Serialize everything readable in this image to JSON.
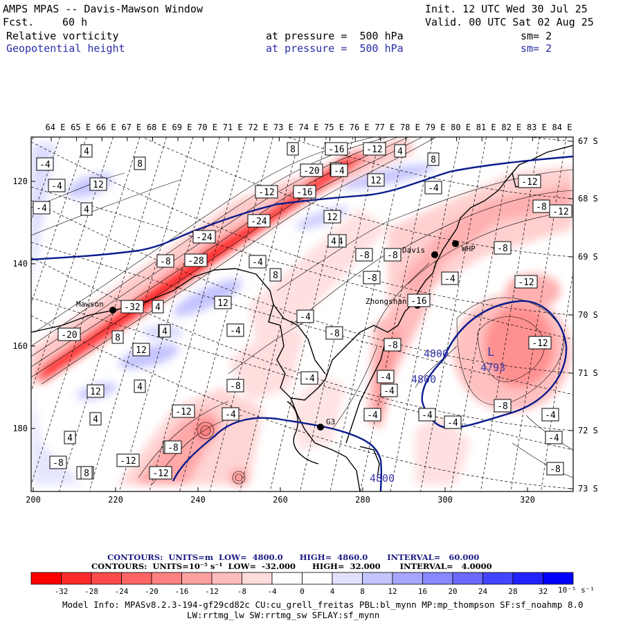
{
  "header": {
    "title": "AMPS MPAS -- Davis-Mawson Window",
    "fcst_label": "Fcst.",
    "fcst_value": "60 h",
    "init": "Init. 12 UTC Wed 30 Jul 25",
    "valid": "Valid. 00 UTC Sat 02 Aug 25",
    "field1": "Relative vorticity",
    "field1_level": "at pressure =  500 hPa",
    "field1_sm": "sm= 2",
    "field2": "Geopotential height",
    "field2_level": "at pressure =  500 hPa",
    "field2_sm": "sm= 2"
  },
  "colors": {
    "height_contour": "#0a1a8c",
    "coast": "#000000"
  },
  "axes": {
    "top_lon_labels": [
      "64 E",
      "65 E",
      "66 E",
      "67 E",
      "68 E",
      "69 E",
      "70 E",
      "71 E",
      "72 E",
      "73 E",
      "74 E",
      "75 E",
      "76 E",
      "77 E",
      "78 E",
      "79 E",
      "80 E",
      "81 E",
      "82 E",
      "83 E",
      "84 E"
    ],
    "right_lat_labels": [
      "67 S",
      "68 S",
      "69 S",
      "70 S",
      "71 S",
      "72 S",
      "73 S"
    ],
    "left_y_ticks": [
      "120",
      "140",
      "160",
      "180"
    ],
    "bottom_x_ticks": [
      "200",
      "220",
      "240",
      "260",
      "280",
      "300",
      "320"
    ]
  },
  "stations": [
    {
      "name": "Davis"
    },
    {
      "name": "WHP"
    },
    {
      "name": "Mawson"
    },
    {
      "name": "Zhongshan"
    },
    {
      "name": "G3"
    }
  ],
  "vort_labels": [
    "-4",
    "4",
    "8",
    "-4",
    "4",
    "12",
    "-4",
    "8",
    "4",
    "-4",
    "-16",
    "-12",
    "4",
    "8",
    "-20",
    "-4",
    "12",
    "-4",
    "-12",
    "-16",
    "-12",
    "-8",
    "12",
    "-24",
    "-12",
    "-24",
    "4",
    "-28",
    "-8",
    "8",
    "-4",
    "-8",
    "-8",
    "-8",
    "-4",
    "-8",
    "-32",
    "4",
    "12",
    "-12",
    "-16",
    "-4",
    "-4",
    "-20",
    "8",
    "12",
    "4",
    "-8",
    "-8",
    "12",
    "-12",
    "-4",
    "-8",
    "-8",
    "4",
    "-12",
    "-4",
    "-4",
    "-4",
    "-4",
    "-4",
    "-4",
    "-8",
    "-8",
    "-12",
    "-12",
    "4",
    "4",
    "-8",
    "-4",
    "-4",
    "8",
    "4",
    "-4",
    "-8"
  ],
  "height_labels": [
    "4800",
    "4800",
    "4793",
    "4800",
    "L"
  ],
  "contour_info": {
    "line1": "CONTOURS:  UNITS=m  LOW=  4800.0      HIGH=  4860.0       INTERVAL=   60.000",
    "line2": "CONTOURS:  UNITS=10⁻⁵ s⁻¹  LOW=  -32.000      HIGH=  32.000       INTERVAL=   4.0000"
  },
  "colorbar": {
    "ticks": [
      "-32",
      "-28",
      "-24",
      "-20",
      "-16",
      "-12",
      "-8",
      "-4",
      "0",
      "4",
      "8",
      "12",
      "16",
      "20",
      "24",
      "28",
      "32"
    ],
    "unit": "10⁻⁵ s⁻¹",
    "colors": [
      "#ff0000",
      "#ff2a2a",
      "#ff4a4a",
      "#ff6565",
      "#ff8080",
      "#ffa0a0",
      "#ffbcbc",
      "#ffdcdc",
      "#ffffff",
      "#ffffff",
      "#e2e2ff",
      "#c4c4ff",
      "#a6a6ff",
      "#8888ff",
      "#6a6aff",
      "#4444ff",
      "#2222ff",
      "#0000ff"
    ]
  },
  "model_info": {
    "line1": "Model Info: MPASv8.2.3-194-gf29cd82c CU:cu_grell_freitas PBL:bl_mynn MP:mp_thompson SF:sf_noahmp 8.0",
    "line2": "LW:rrtmg_lw SW:rrtmg_sw SFLAY:sf_mynn"
  }
}
